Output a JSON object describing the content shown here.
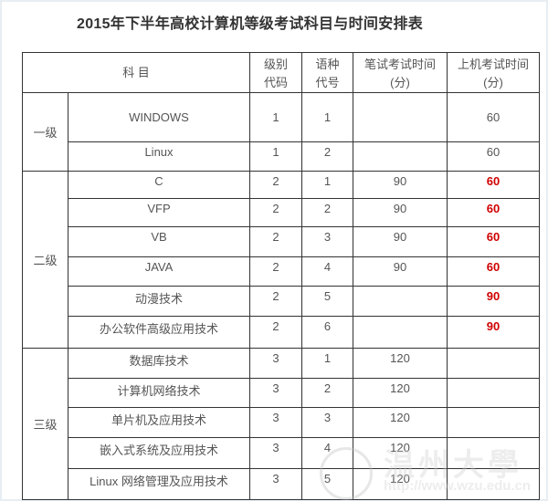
{
  "title": "2015年下半年高校计算机等级考试科目与时间安排表",
  "headers": {
    "subject": "科 目",
    "level_code_1": "级别",
    "level_code_2": "代码",
    "lang_code_1": "语种",
    "lang_code_2": "代号",
    "written_1": "笔试考试时间",
    "written_2": "(分)",
    "computer_1": "上机考试时间",
    "computer_2": "(分)"
  },
  "groups": [
    {
      "level": "一级",
      "rows": [
        {
          "subject": "WINDOWS",
          "level_code": "1",
          "lang_code": "1",
          "written": "",
          "computer": "60",
          "highlight": false
        },
        {
          "subject": "Linux",
          "level_code": "1",
          "lang_code": "2",
          "written": "",
          "computer": "60",
          "highlight": false
        }
      ]
    },
    {
      "level": "二级",
      "rows": [
        {
          "subject": "C",
          "level_code": "2",
          "lang_code": "1",
          "written": "90",
          "computer": "60",
          "highlight": true
        },
        {
          "subject": "VFP",
          "level_code": "2",
          "lang_code": "2",
          "written": "90",
          "computer": "60",
          "highlight": true
        },
        {
          "subject": "VB",
          "level_code": "2",
          "lang_code": "3",
          "written": "90",
          "computer": "60",
          "highlight": true
        },
        {
          "subject": "JAVA",
          "level_code": "2",
          "lang_code": "4",
          "written": "90",
          "computer": "60",
          "highlight": true
        },
        {
          "subject": "动漫技术",
          "level_code": "2",
          "lang_code": "5",
          "written": "",
          "computer": "90",
          "highlight": true
        },
        {
          "subject": "办公软件高级应用技术",
          "level_code": "2",
          "lang_code": "6",
          "written": "",
          "computer": "90",
          "highlight": true
        }
      ]
    },
    {
      "level": "三级",
      "rows": [
        {
          "subject": "数据库技术",
          "level_code": "3",
          "lang_code": "1",
          "written": "120",
          "computer": "",
          "highlight": false
        },
        {
          "subject": "计算机网络技术",
          "level_code": "3",
          "lang_code": "2",
          "written": "120",
          "computer": "",
          "highlight": false
        },
        {
          "subject": "单片机及应用技术",
          "level_code": "3",
          "lang_code": "3",
          "written": "120",
          "computer": "",
          "highlight": false
        },
        {
          "subject": "嵌入式系统及应用技术",
          "level_code": "3",
          "lang_code": "4",
          "written": "120",
          "computer": "",
          "highlight": false
        },
        {
          "subject": "Linux 网络管理及应用技术",
          "level_code": "3",
          "lang_code": "5",
          "written": "120",
          "computer": "",
          "highlight": false
        }
      ]
    }
  ],
  "watermark": {
    "text": "温州大学",
    "url": "http://www.wzu.edu.cn"
  },
  "colors": {
    "highlight": "#d00000"
  }
}
